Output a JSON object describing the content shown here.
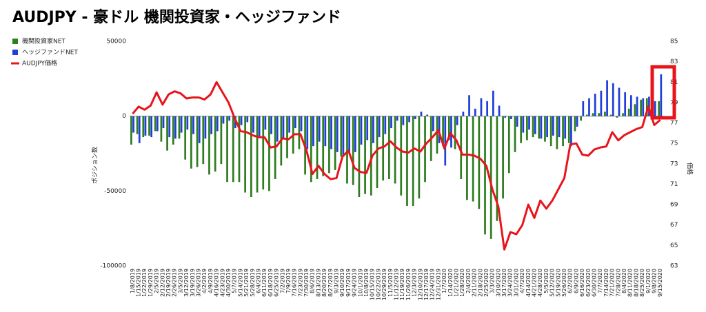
{
  "chart_data": {
    "type": "bar-line",
    "title": "AUDJPY - 豪ドル 機関投資家・ヘッジファンド",
    "y_label": "ポジション数",
    "y2_label": "価格",
    "categories": [
      "1/8/2019",
      "1/15/2019",
      "1/22/2019",
      "1/29/2019",
      "2/5/2019",
      "2/12/2019",
      "2/19/2019",
      "2/26/2019",
      "3/5/2019",
      "3/12/2019",
      "3/19/2019",
      "3/26/2019",
      "4/2/2019",
      "4/9/2019",
      "4/16/2019",
      "4/23/2019",
      "4/30/2019",
      "5/7/2019",
      "5/14/2019",
      "5/21/2019",
      "5/28/2019",
      "6/4/2019",
      "6/11/2019",
      "6/18/2019",
      "6/25/2019",
      "7/2/2019",
      "7/9/2019",
      "7/16/2019",
      "7/23/2019",
      "7/30/2019",
      "8/6/2019",
      "8/13/2019",
      "8/20/2019",
      "8/27/2019",
      "9/3/2019",
      "9/10/2019",
      "9/17/2019",
      "9/24/2019",
      "10/1/2019",
      "10/8/2019",
      "10/15/2019",
      "10/22/2019",
      "10/29/2019",
      "11/5/2019",
      "11/12/2019",
      "11/19/2019",
      "11/26/2019",
      "12/3/2019",
      "12/10/2019",
      "12/17/2019",
      "12/24/2019",
      "12/31/2019",
      "1/7/2020",
      "1/14/2020",
      "1/21/2020",
      "1/28/2020",
      "2/4/2020",
      "2/11/2020",
      "2/18/2020",
      "2/25/2020",
      "3/3/2020",
      "3/10/2020",
      "3/17/2020",
      "3/24/2020",
      "3/31/2020",
      "4/7/2020",
      "4/14/2020",
      "4/21/2020",
      "4/28/2020",
      "5/5/2020",
      "5/12/2020",
      "5/19/2020",
      "5/26/2020",
      "6/2/2020",
      "6/9/2020",
      "6/16/2020",
      "6/23/2020",
      "6/30/2020",
      "7/7/2020",
      "7/14/2020",
      "7/21/2020",
      "7/28/2020",
      "8/4/2020",
      "8/11/2020",
      "8/18/2020",
      "8/25/2020",
      "9/1/2020",
      "9/8/2020",
      "9/15/2020"
    ],
    "series": [
      {
        "name": "機関投資家NET",
        "color": "#2e7d1f",
        "kind": "bar",
        "values": [
          -19000,
          -12000,
          -14000,
          -13000,
          -10000,
          -17000,
          -23000,
          -19000,
          -15000,
          -29000,
          -35000,
          -34000,
          -32000,
          -39000,
          -37000,
          -32000,
          -44000,
          -44000,
          -44000,
          -51000,
          -54000,
          -51000,
          -49000,
          -50000,
          -42000,
          -33000,
          -28000,
          -25000,
          -22000,
          -39000,
          -44000,
          -42000,
          -40000,
          -38000,
          -36000,
          -27000,
          -45000,
          -46000,
          -54000,
          -52000,
          -53000,
          -48000,
          -43000,
          -42000,
          -45000,
          -53000,
          -60000,
          -60000,
          -55000,
          -44000,
          -30000,
          -25000,
          -20000,
          -16000,
          -22000,
          -42000,
          -56000,
          -57000,
          -62000,
          -79000,
          -82000,
          -70000,
          -55000,
          -38000,
          -24000,
          -18000,
          -16000,
          -14000,
          -15000,
          -17000,
          -20000,
          -22000,
          -20000,
          -18000,
          -10000,
          -3000,
          1000,
          2000,
          2000,
          3000,
          1000,
          -1000,
          2000,
          5000,
          8000,
          11000,
          12000,
          10000,
          10000
        ]
      },
      {
        "name": "ヘッジファンドNET",
        "color": "#1f3fd6",
        "kind": "bar",
        "values": [
          -11000,
          -18000,
          -13000,
          -14000,
          -10000,
          -8000,
          -14000,
          -15000,
          -11000,
          -9000,
          -12000,
          -18000,
          -15000,
          -12000,
          -10000,
          -5000,
          -3000,
          -8000,
          -6000,
          -4000,
          -11000,
          -14000,
          -9000,
          -12000,
          -17000,
          -15000,
          -11000,
          -8000,
          -10000,
          -22000,
          -20000,
          -17000,
          -20000,
          -22000,
          -24000,
          -27000,
          -25000,
          -24000,
          -19000,
          -16000,
          -18000,
          -14000,
          -12000,
          -8000,
          -3000,
          -6000,
          -4000,
          -2000,
          3000,
          1000,
          -10000,
          -18000,
          -33000,
          -21000,
          -6000,
          3000,
          14000,
          5000,
          12000,
          10000,
          17000,
          7000,
          -1000,
          -2000,
          -7000,
          -11000,
          -9000,
          -12000,
          -15000,
          -14000,
          -13000,
          -14000,
          -15000,
          -20000,
          -7000,
          10000,
          12000,
          15000,
          17000,
          24000,
          22000,
          19000,
          16000,
          14000,
          13000,
          12000,
          13000,
          10000,
          28000
        ]
      },
      {
        "name": "AUDJPY価格",
        "color": "#e8141b",
        "kind": "line",
        "axis": "y2",
        "values": [
          77.9,
          78.6,
          78.3,
          78.7,
          80.0,
          78.8,
          79.8,
          80.1,
          79.9,
          79.4,
          79.5,
          79.5,
          79.3,
          79.8,
          81.0,
          80.0,
          79.0,
          77.5,
          76.2,
          76.1,
          75.8,
          75.6,
          75.6,
          74.6,
          74.7,
          75.5,
          75.4,
          75.9,
          75.9,
          74.3,
          72.0,
          72.8,
          72.0,
          71.5,
          71.6,
          73.7,
          74.3,
          72.6,
          72.2,
          72.1,
          73.8,
          74.5,
          74.7,
          75.2,
          74.6,
          74.2,
          74.1,
          74.5,
          74.2,
          75.0,
          75.6,
          76.3,
          74.5,
          76.0,
          75.3,
          73.9,
          73.9,
          73.8,
          73.5,
          72.8,
          70.5,
          68.8,
          64.6,
          66.3,
          66.1,
          67.0,
          69.0,
          67.7,
          69.4,
          68.6,
          69.4,
          70.5,
          71.6,
          74.9,
          75.0,
          73.9,
          73.8,
          74.4,
          74.6,
          74.7,
          76.1,
          75.3,
          75.8,
          76.1,
          76.4,
          76.6,
          78.6,
          76.8,
          77.3
        ]
      }
    ],
    "ylim": [
      -100000,
      50000
    ],
    "yticks": [
      -100000,
      -50000,
      0,
      50000
    ],
    "y2lim": [
      63,
      85
    ],
    "y2ticks": [
      63,
      65,
      67,
      69,
      71,
      73,
      75,
      77,
      79,
      81,
      83,
      85
    ],
    "grid": false,
    "legend": "left"
  }
}
